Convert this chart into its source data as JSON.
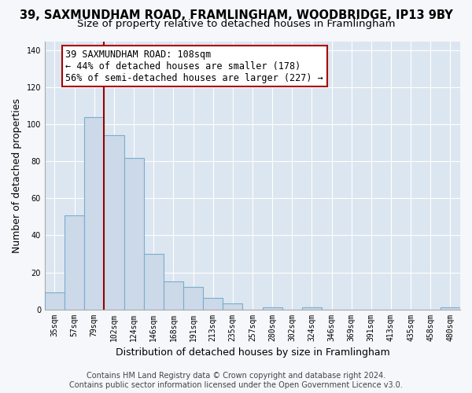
{
  "title": "39, SAXMUNDHAM ROAD, FRAMLINGHAM, WOODBRIDGE, IP13 9BY",
  "subtitle": "Size of property relative to detached houses in Framlingham",
  "xlabel": "Distribution of detached houses by size in Framlingham",
  "ylabel": "Number of detached properties",
  "bar_labels": [
    "35sqm",
    "57sqm",
    "79sqm",
    "102sqm",
    "124sqm",
    "146sqm",
    "168sqm",
    "191sqm",
    "213sqm",
    "235sqm",
    "257sqm",
    "280sqm",
    "302sqm",
    "324sqm",
    "346sqm",
    "369sqm",
    "391sqm",
    "413sqm",
    "435sqm",
    "458sqm",
    "480sqm"
  ],
  "bar_values": [
    9,
    51,
    104,
    94,
    82,
    30,
    15,
    12,
    6,
    3,
    0,
    1,
    0,
    1,
    0,
    0,
    0,
    0,
    0,
    0,
    1
  ],
  "bar_color": "#ccd9e8",
  "bar_edge_color": "#7aadcf",
  "vline_color": "#990000",
  "vline_x": 3.5,
  "annotation_line1": "39 SAXMUNDHAM ROAD: 108sqm",
  "annotation_line2": "← 44% of detached houses are smaller (178)",
  "annotation_line3": "56% of semi-detached houses are larger (227) →",
  "annotation_box_color": "#ffffff",
  "annotation_box_edge": "#aa0000",
  "ylim": [
    0,
    145
  ],
  "yticks": [
    0,
    20,
    40,
    60,
    80,
    100,
    120,
    140
  ],
  "footer_line1": "Contains HM Land Registry data © Crown copyright and database right 2024.",
  "footer_line2": "Contains public sector information licensed under the Open Government Licence v3.0.",
  "bg_color": "#f5f7fa",
  "plot_bg_color": "#dce6f0",
  "grid_color": "#ffffff",
  "title_fontsize": 10.5,
  "subtitle_fontsize": 9.5,
  "tick_fontsize": 7,
  "ylabel_fontsize": 9,
  "xlabel_fontsize": 9,
  "annotation_fontsize": 8.5,
  "footer_fontsize": 7
}
